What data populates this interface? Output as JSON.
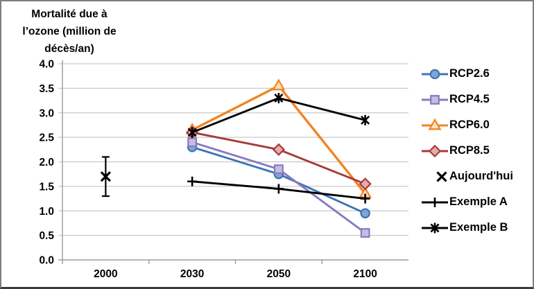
{
  "title": "Mortalité due à\nl’ozone (million de\ndécès/an)",
  "chart_data": {
    "type": "line",
    "title": "Mortalité due à l’ozone (million de décès/an)",
    "xlabel": "",
    "ylabel": "Mortalité due à l’ozone (million de décès/an)",
    "x_categories": [
      "2000",
      "2030",
      "2050",
      "2100"
    ],
    "ylim": [
      0.0,
      4.0
    ],
    "y_tick_step": 0.5,
    "y_tick_labels": [
      "0.0",
      "0.5",
      "1.0",
      "1.5",
      "2.0",
      "2.5",
      "3.0",
      "3.5",
      "4.0"
    ],
    "grid": true,
    "legend_position": "right",
    "series": [
      {
        "name": "RCP2.6",
        "marker": "circle",
        "color": "#3d74b4",
        "fill": "#7fa5d6",
        "x": [
          "2030",
          "2050",
          "2100"
        ],
        "values": [
          2.3,
          1.75,
          0.95
        ]
      },
      {
        "name": "RCP4.5",
        "marker": "square",
        "color": "#8979bf",
        "fill": "#c6bce1",
        "x": [
          "2030",
          "2050",
          "2100"
        ],
        "values": [
          2.4,
          1.85,
          0.55
        ]
      },
      {
        "name": "RCP6.0",
        "marker": "triangle",
        "color": "#f28420",
        "fill": "#fbdfbd",
        "x": [
          "2030",
          "2050",
          "2100"
        ],
        "values": [
          2.65,
          3.55,
          1.35
        ]
      },
      {
        "name": "RCP8.5",
        "marker": "diamond",
        "color": "#a63b3a",
        "fill": "#e3adac",
        "x": [
          "2030",
          "2050",
          "2100"
        ],
        "values": [
          2.6,
          2.25,
          1.55
        ]
      },
      {
        "name": "Exemple A",
        "marker": "plus",
        "color": "#000000",
        "fill": "none",
        "x": [
          "2030",
          "2050",
          "2100"
        ],
        "values": [
          1.6,
          1.45,
          1.25
        ]
      },
      {
        "name": "Exemple B",
        "marker": "star",
        "color": "#000000",
        "fill": "none",
        "x": [
          "2030",
          "2050",
          "2100"
        ],
        "values": [
          2.6,
          3.3,
          2.85
        ]
      }
    ],
    "point_series": {
      "name": "Aujourd'hui",
      "marker": "x",
      "color": "#000000",
      "x": "2000",
      "value": 1.7,
      "error_low": 1.3,
      "error_high": 2.1
    },
    "legend_order": [
      "RCP2.6",
      "RCP4.5",
      "RCP6.0",
      "RCP8.5",
      "Aujourd'hui",
      "Exemple A",
      "Exemple B"
    ]
  },
  "colors": {
    "gridline": "#c9c9c9",
    "axis": "#a0a0a0",
    "frame_border": "#7e7e7e",
    "frame_bottom": "#3b3b3b",
    "text": "#000000"
  }
}
